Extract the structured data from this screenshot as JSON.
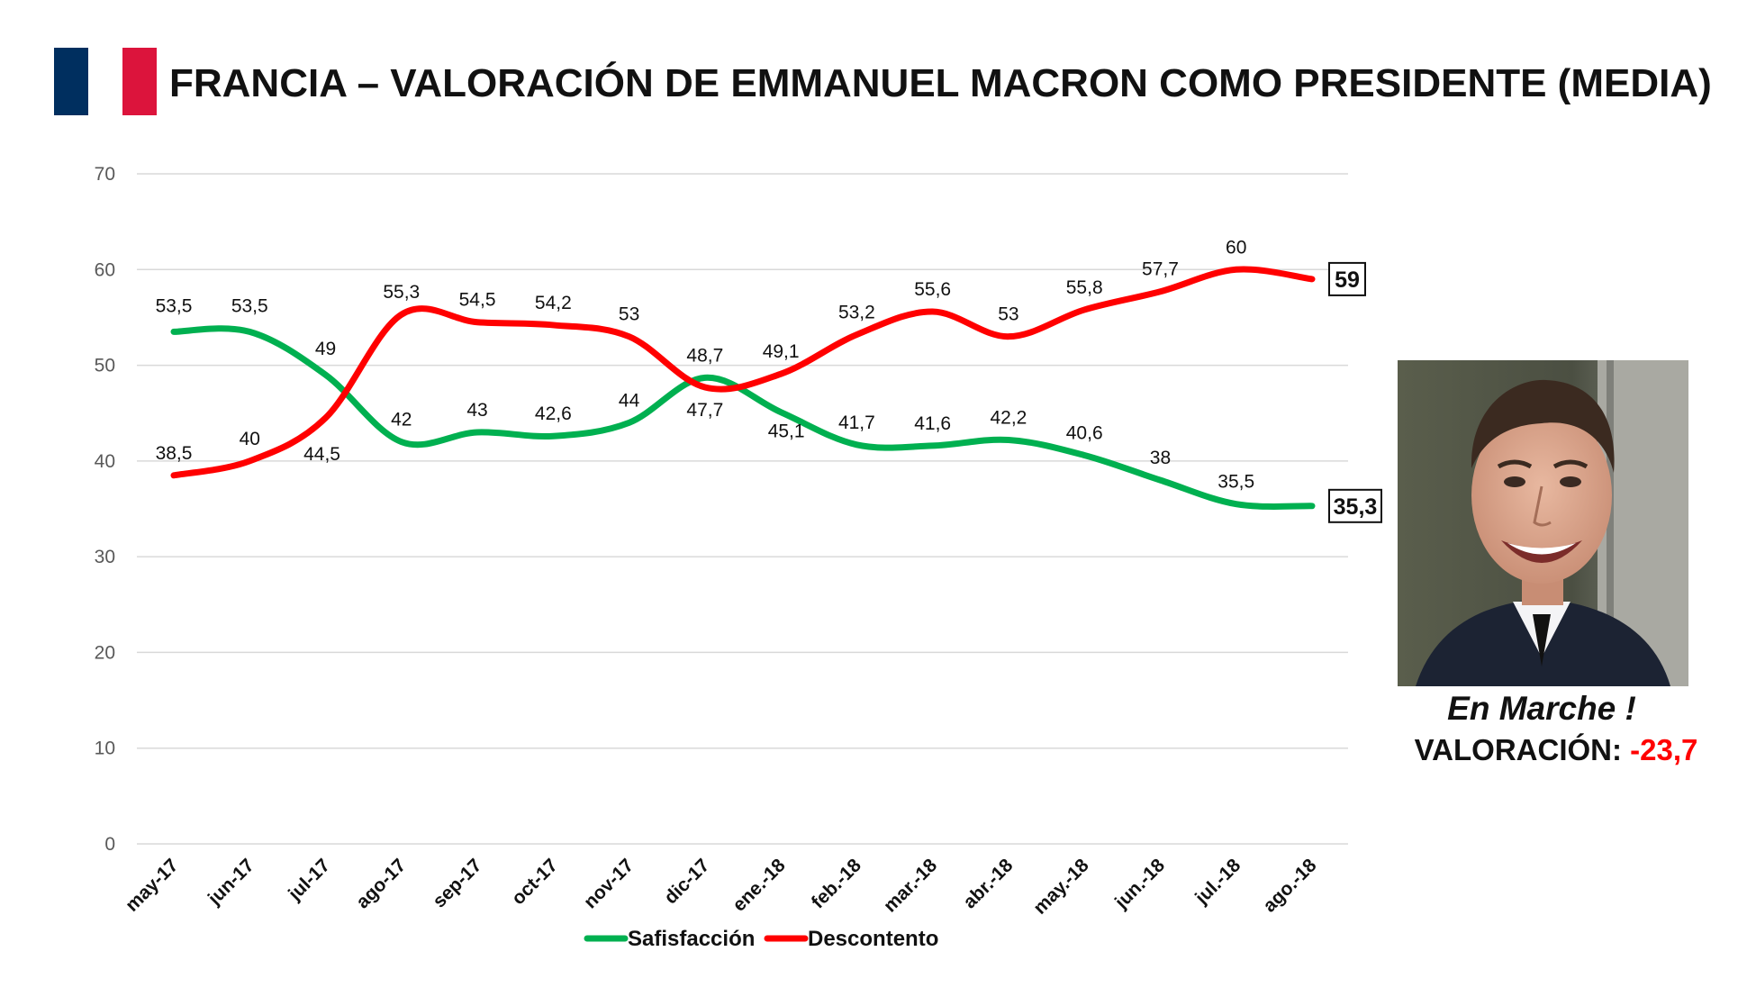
{
  "title": "FRANCIA – VALORACIÓN DE EMMANUEL MACRON COMO PRESIDENTE (MEDIA)",
  "flag_colors": {
    "blue": "#002f5f",
    "white": "#ffffff",
    "red": "#dc143c"
  },
  "side_panel": {
    "photo_icon": "portrait-photo",
    "motto": "En Marche !",
    "rating_label": "VALORACIÓN:",
    "rating_value": "-23,7"
  },
  "chart_data": {
    "type": "line",
    "categories": [
      "may-17",
      "jun-17",
      "jul-17",
      "ago-17",
      "sep-17",
      "oct-17",
      "nov-17",
      "dic-17",
      "ene.-18",
      "feb.-18",
      "mar.-18",
      "abr.-18",
      "may.-18",
      "jun.-18",
      "jul.-18",
      "ago.-18"
    ],
    "yticks": [
      "0",
      "10",
      "20",
      "30",
      "40",
      "50",
      "60",
      "70"
    ],
    "ylim": [
      0,
      70
    ],
    "grid": true,
    "legend_position": "bottom",
    "series": [
      {
        "name": "Safisfacción",
        "color": "#00b050",
        "values": [
          53.5,
          53.5,
          49,
          42,
          43,
          42.6,
          44,
          48.7,
          45.1,
          41.7,
          41.6,
          42.2,
          40.6,
          38,
          35.5,
          35.3
        ],
        "labels": [
          "53,5",
          "53,5",
          "49",
          "42",
          "43",
          "42,6",
          "44",
          "48,7",
          "45,1",
          "41,7",
          "41,6",
          "42,2",
          "40,6",
          "38",
          "35,5",
          "35,3"
        ]
      },
      {
        "name": "Descontento",
        "color": "#ff0000",
        "values": [
          38.5,
          40,
          44.5,
          55.3,
          54.5,
          54.2,
          53,
          47.7,
          49.1,
          53.2,
          55.6,
          53,
          55.8,
          57.7,
          60,
          59
        ],
        "labels": [
          "38,5",
          "40",
          "44,5",
          "55,3",
          "54,5",
          "54,2",
          "53",
          "47,7",
          "49,1",
          "53,2",
          "55,6",
          "53",
          "55,8",
          "57,7",
          "60",
          "59"
        ]
      }
    ]
  }
}
